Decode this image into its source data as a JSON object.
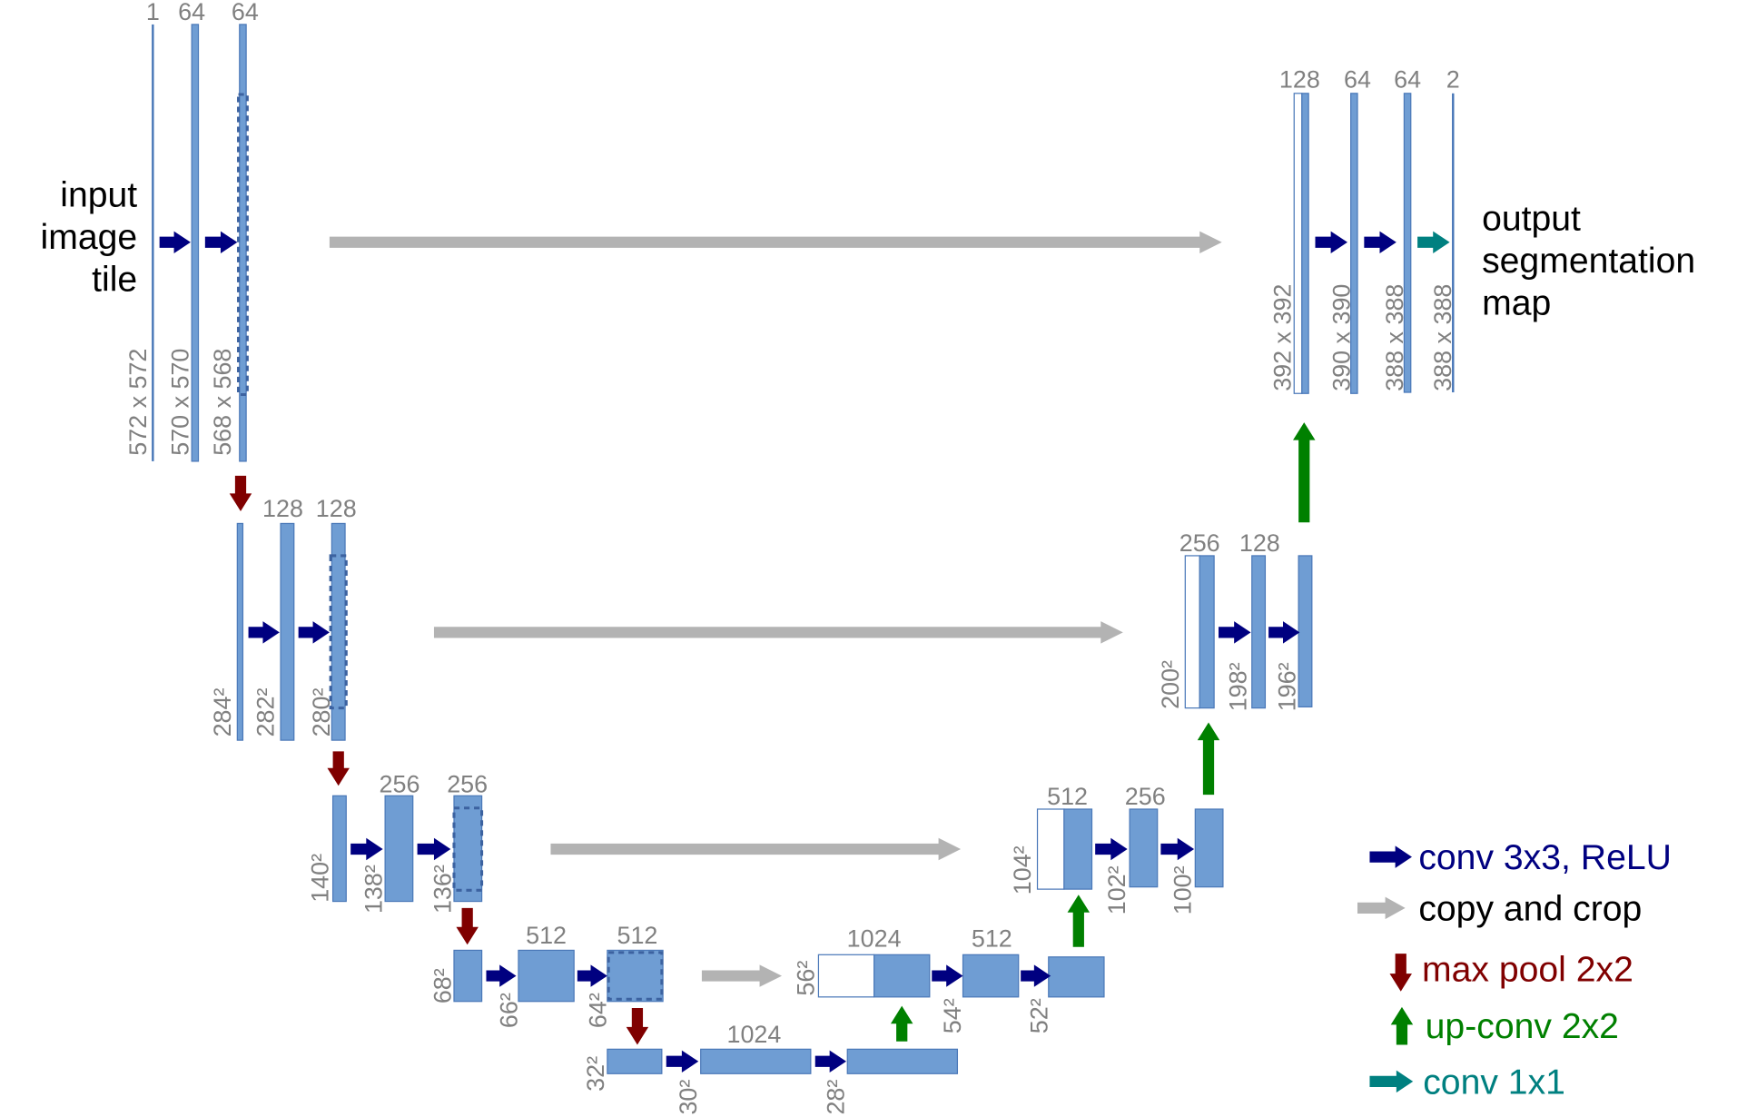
{
  "input_label": [
    "input",
    "image",
    "tile"
  ],
  "output_label": [
    "output",
    "segmentation",
    "map"
  ],
  "channel_labels": [
    "1",
    "64",
    "64",
    "128",
    "128",
    "256",
    "256",
    "512",
    "512",
    "1024",
    "1024",
    "512",
    "512",
    "256",
    "256",
    "128",
    "128",
    "64",
    "64",
    "2"
  ],
  "size_labels": [
    "572 x 572",
    "570 x 570",
    "568 x 568",
    "284²",
    "282²",
    "280²",
    "140²",
    "138²",
    "136²",
    "68²",
    "66²",
    "64²",
    "32²",
    "30²",
    "28²",
    "56²",
    "54²",
    "52²",
    "104²",
    "102²",
    "100²",
    "200²",
    "198²",
    "196²",
    "392 x 392",
    "390 x 390",
    "388 x 388",
    "388 x 388"
  ],
  "legend": [
    {
      "icon": "arrow-right-icon",
      "label": "conv 3x3, ReLU",
      "color": "#000080"
    },
    {
      "icon": "arrow-right-icon",
      "label": "copy and crop",
      "color": "#000000"
    },
    {
      "icon": "arrow-down-icon",
      "label": "max pool 2x2",
      "color": "#800000"
    },
    {
      "icon": "arrow-up-icon",
      "label": "up-conv 2x2",
      "color": "#008000"
    },
    {
      "icon": "arrow-right-icon",
      "label": "conv 1x1",
      "color": "#008080"
    }
  ],
  "colors": {
    "feature_map_fill": "#6f9dd3",
    "feature_map_stroke": "#4a78b8",
    "conv": "#000080",
    "copy_crop": "#b3b3b3",
    "max_pool": "#800000",
    "up_conv": "#008000",
    "conv1x1": "#008080",
    "label_text": "#808080"
  }
}
